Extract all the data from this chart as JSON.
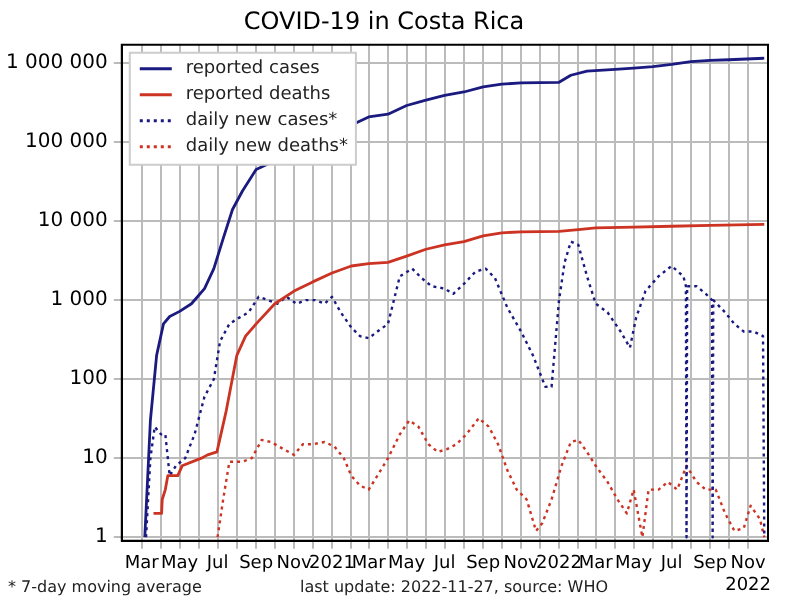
{
  "chart_data": {
    "type": "line",
    "title": "COVID-19 in Costa Rica",
    "log": "y",
    "grid": true,
    "legend": "top left",
    "marker": "none",
    "xlim": [
      "2020-01-29",
      "2022-12-03"
    ],
    "xticks": [
      {
        "value": "2020-03-01",
        "label": "Mar"
      },
      {
        "value": "2020-04-01",
        "label": null
      },
      {
        "value": "2020-05-01",
        "label": "May"
      },
      {
        "value": "2020-06-01",
        "label": null
      },
      {
        "value": "2020-07-01",
        "label": "Jul"
      },
      {
        "value": "2020-08-01",
        "label": null
      },
      {
        "value": "2020-09-01",
        "label": "Sep"
      },
      {
        "value": "2020-10-01",
        "label": null
      },
      {
        "value": "2020-11-01",
        "label": "Nov"
      },
      {
        "value": "2020-12-01",
        "label": null
      },
      {
        "value": "2021-01-01",
        "label": "2021"
      },
      {
        "value": "2021-02-01",
        "label": null
      },
      {
        "value": "2021-03-01",
        "label": "Mar"
      },
      {
        "value": "2021-04-01",
        "label": null
      },
      {
        "value": "2021-05-01",
        "label": "May"
      },
      {
        "value": "2021-06-01",
        "label": null
      },
      {
        "value": "2021-07-01",
        "label": "Jul"
      },
      {
        "value": "2021-08-01",
        "label": null
      },
      {
        "value": "2021-09-01",
        "label": "Sep"
      },
      {
        "value": "2021-10-01",
        "label": null
      },
      {
        "value": "2021-11-01",
        "label": "Nov"
      },
      {
        "value": "2021-12-01",
        "label": null
      },
      {
        "value": "2022-01-01",
        "label": "2022"
      },
      {
        "value": "2022-02-01",
        "label": null
      },
      {
        "value": "2022-03-01",
        "label": "Mar"
      },
      {
        "value": "2022-04-01",
        "label": null
      },
      {
        "value": "2022-05-01",
        "label": "May"
      },
      {
        "value": "2022-06-01",
        "label": null
      },
      {
        "value": "2022-07-01",
        "label": "Jul"
      },
      {
        "value": "2022-08-01",
        "label": null
      },
      {
        "value": "2022-09-01",
        "label": "Sep"
      },
      {
        "value": "2022-10-01",
        "label": null
      },
      {
        "value": "2022-11-01",
        "label": "Nov\n2022"
      }
    ],
    "ylim": [
      0.9,
      1700000
    ],
    "yticks": [
      1,
      {
        "value": 10,
        "label": "10"
      },
      {
        "value": 100,
        "label": "100"
      },
      {
        "value": 1000,
        "label": "1 000"
      },
      {
        "value": 10000,
        "label": "10 000"
      },
      {
        "value": 100000,
        "label": "100 000"
      },
      {
        "value": 1000000,
        "label": "1 000 000"
      }
    ],
    "annotations": [
      "* 7-day moving average",
      "last update: 2022-11-27, source: WHO"
    ],
    "series": [
      {
        "name": "reported cases",
        "color": "#1a1a80",
        "line_style": "solid",
        "x": [
          "2020-03-06",
          "2020-03-15",
          "2020-03-25",
          "2020-04-05",
          "2020-04-15",
          "2020-05-01",
          "2020-05-20",
          "2020-06-10",
          "2020-06-25",
          "2020-07-10",
          "2020-07-25",
          "2020-08-10",
          "2020-09-01",
          "2020-10-01",
          "2020-11-01",
          "2020-12-01",
          "2021-01-01",
          "2021-02-01",
          "2021-03-01",
          "2021-04-01",
          "2021-05-01",
          "2021-06-01",
          "2021-07-01",
          "2021-08-01",
          "2021-09-01",
          "2021-10-01",
          "2021-11-01",
          "2021-12-01",
          "2022-01-01",
          "2022-01-20",
          "2022-02-15",
          "2022-04-01",
          "2022-05-01",
          "2022-06-01",
          "2022-07-01",
          "2022-08-01",
          "2022-09-01",
          "2022-10-01",
          "2022-11-27"
        ],
        "values": [
          1,
          30,
          200,
          500,
          620,
          720,
          900,
          1400,
          2500,
          6000,
          14000,
          24000,
          45000,
          null,
          null,
          null,
          null,
          null,
          208000,
          225000,
          290000,
          340000,
          390000,
          430000,
          500000,
          540000,
          560000,
          565000,
          570000,
          700000,
          790000,
          830000,
          860000,
          900000,
          960000,
          1040000,
          1080000,
          1100000,
          1150000
        ]
      },
      {
        "name": "reported deaths",
        "color": "#cc3322",
        "line_style": "solid",
        "x": [
          "2020-03-20",
          "2020-04-02",
          "2020-04-03",
          "2020-04-08",
          "2020-04-12",
          "2020-04-28",
          "2020-05-05",
          "2020-06-05",
          "2020-06-15",
          "2020-06-30",
          "2020-07-15",
          "2020-08-01",
          "2020-08-15",
          "2020-09-01",
          "2020-10-01",
          "2020-11-01",
          "2020-12-01",
          "2021-01-01",
          "2021-02-01",
          "2021-03-01",
          "2021-04-01",
          "2021-05-01",
          "2021-06-01",
          "2021-07-01",
          "2021-08-01",
          "2021-09-01",
          "2021-10-01",
          "2021-11-01",
          "2021-12-01",
          "2022-01-01",
          "2022-02-01",
          "2022-03-01",
          "2022-05-01",
          "2022-07-01",
          "2022-09-01",
          "2022-11-27"
        ],
        "values": [
          2,
          2,
          3,
          4,
          6,
          6,
          8,
          10,
          11,
          12,
          40,
          200,
          350,
          500,
          900,
          1300,
          1700,
          2200,
          2700,
          2900,
          3000,
          3600,
          4400,
          5000,
          5500,
          6500,
          7100,
          7300,
          7350,
          7400,
          7800,
          8200,
          8400,
          8600,
          8800,
          9100
        ]
      },
      {
        "name": "daily new cases*",
        "color": "#1a1a80",
        "line_style": "dotted",
        "x": [
          "2020-03-08",
          "2020-03-15",
          "2020-03-22",
          "2020-04-01",
          "2020-04-08",
          "2020-04-15",
          "2020-04-25",
          "2020-05-10",
          "2020-05-25",
          "2020-06-10",
          "2020-06-25",
          "2020-07-05",
          "2020-07-20",
          "2020-08-05",
          "2020-08-20",
          "2020-09-05",
          "2020-09-20",
          "2020-10-05",
          "2020-10-20",
          "2020-11-05",
          "2020-11-20",
          "2020-12-05",
          "2020-12-20",
          "2021-01-01",
          "2021-01-15",
          "2021-02-01",
          "2021-02-15",
          "2021-03-01",
          "2021-03-15",
          "2021-04-01",
          "2021-04-20",
          "2021-05-10",
          "2021-05-25",
          "2021-06-10",
          "2021-07-01",
          "2021-07-15",
          "2021-08-01",
          "2021-08-20",
          "2021-09-05",
          "2021-09-20",
          "2021-10-10",
          "2021-11-01",
          "2021-11-20",
          "2021-12-10",
          "2021-12-20",
          "2022-01-01",
          "2022-01-10",
          "2022-01-20",
          "2022-02-01",
          "2022-02-15",
          "2022-03-01",
          "2022-03-20",
          "2022-04-10",
          "2022-04-25",
          "2022-05-05",
          "2022-05-20",
          "2022-06-10",
          "2022-07-01",
          "2022-07-20",
          "2022-07-24",
          "2022-07-25",
          "2022-07-26",
          "2022-08-10",
          "2022-08-25",
          "2022-09-04",
          "2022-09-05",
          "2022-09-06",
          "2022-09-25",
          "2022-10-10",
          "2022-10-25",
          "2022-11-10",
          "2022-11-25",
          "2022-11-27"
        ],
        "values": [
          1,
          10,
          25,
          20,
          20,
          6,
          8,
          10,
          20,
          60,
          100,
          300,
          500,
          600,
          700,
          1100,
          1000,
          900,
          1100,
          900,
          1000,
          1000,
          900,
          1100,
          700,
          450,
          350,
          330,
          400,
          500,
          2000,
          2500,
          1900,
          1500,
          1400,
          1200,
          1600,
          2300,
          2500,
          1900,
          800,
          400,
          200,
          80,
          80,
          1000,
          3000,
          5500,
          5000,
          2000,
          900,
          700,
          400,
          250,
          600,
          1300,
          2000,
          2700,
          2000,
          1500,
          1,
          1500,
          1500,
          1200,
          1000,
          1,
          1000,
          700,
          500,
          400,
          400,
          350,
          1
        ]
      },
      {
        "name": "daily new deaths*",
        "color": "#cc3322",
        "line_style": "dotted",
        "x": [
          "2020-07-01",
          "2020-07-10",
          "2020-07-20",
          "2020-08-10",
          "2020-08-25",
          "2020-09-10",
          "2020-09-25",
          "2020-10-15",
          "2020-11-01",
          "2020-11-15",
          "2020-12-01",
          "2020-12-20",
          "2021-01-05",
          "2021-01-20",
          "2021-02-01",
          "2021-02-15",
          "2021-03-01",
          "2021-03-15",
          "2021-04-01",
          "2021-04-20",
          "2021-05-05",
          "2021-05-20",
          "2021-06-05",
          "2021-06-20",
          "2021-07-05",
          "2021-07-20",
          "2021-08-05",
          "2021-08-25",
          "2021-09-10",
          "2021-09-25",
          "2021-10-10",
          "2021-10-25",
          "2021-11-10",
          "2021-11-25",
          "2021-12-05",
          "2021-12-20",
          "2022-01-05",
          "2022-01-20",
          "2022-02-01",
          "2022-02-15",
          "2022-03-01",
          "2022-03-20",
          "2022-04-05",
          "2022-04-20",
          "2022-05-01",
          "2022-05-15",
          "2022-05-25",
          "2022-06-10",
          "2022-06-25",
          "2022-07-10",
          "2022-07-25",
          "2022-08-10",
          "2022-08-25",
          "2022-09-10",
          "2022-09-25",
          "2022-10-10",
          "2022-10-25",
          "2022-11-05",
          "2022-11-20",
          "2022-11-27"
        ],
        "values": [
          1,
          3,
          9,
          9,
          10,
          17,
          16,
          13,
          11,
          15,
          15,
          16,
          14,
          10,
          6,
          4.5,
          4,
          6,
          10,
          20,
          30,
          25,
          15,
          12,
          13,
          15,
          20,
          32,
          25,
          15,
          7,
          4,
          3,
          1.2,
          1.5,
          3,
          8,
          16,
          17,
          12,
          8,
          5,
          3,
          2,
          4,
          1,
          4,
          4,
          5,
          4,
          8,
          5,
          4,
          4,
          2,
          1.2,
          1.3,
          2.5,
          1.7,
          1
        ]
      }
    ]
  }
}
